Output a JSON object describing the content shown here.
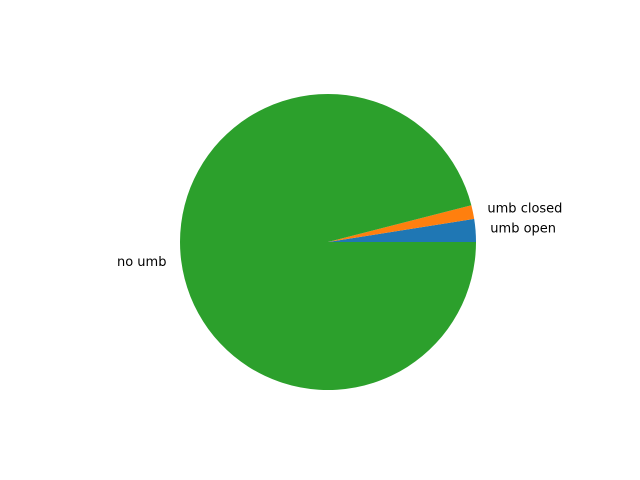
{
  "chart_data": {
    "type": "pie",
    "labels": [
      "umb open",
      "umb closed",
      "no umb"
    ],
    "values": [
      2.5,
      1.5,
      96.0
    ],
    "colors": [
      "#1f77b4",
      "#ff7f0e",
      "#2ca02c"
    ],
    "start_angle_deg": 0,
    "direction": "counterclockwise",
    "legend": "none"
  }
}
